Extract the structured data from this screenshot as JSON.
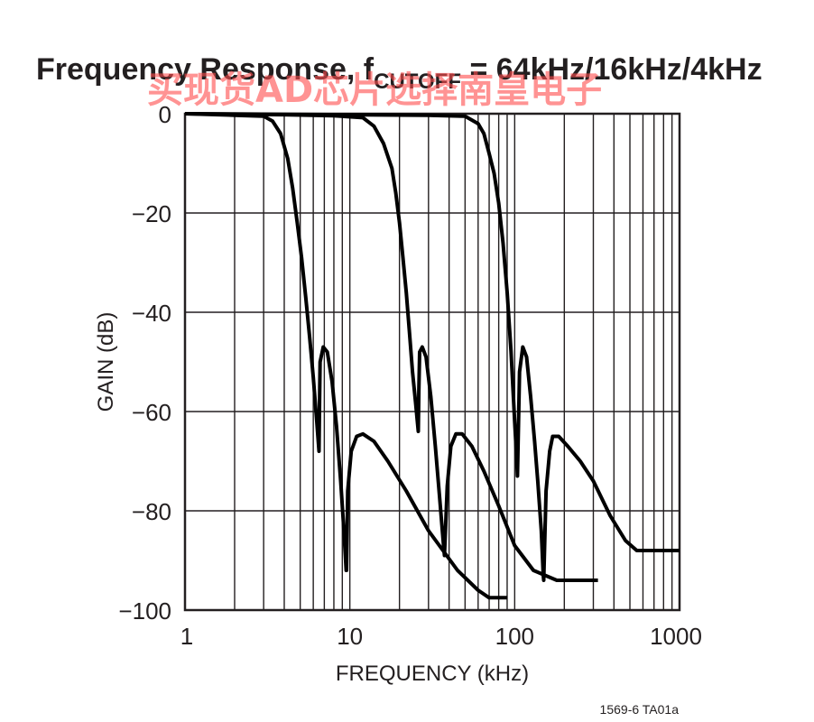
{
  "chart_data": {
    "type": "line",
    "title": "Frequency Response, f",
    "title_subscript": "CUTOFF",
    "title_suffix": " = 64kHz/16kHz/4kHz",
    "xlabel": "FREQUENCY (kHz)",
    "ylabel": "GAIN (dB)",
    "x_scale": "log",
    "xlim": [
      1,
      1000
    ],
    "ylim": [
      -100,
      0
    ],
    "x_ticks": [
      "1",
      "10",
      "100",
      "1000"
    ],
    "y_ticks": [
      "0",
      "−20",
      "−40",
      "−60",
      "−80",
      "−100"
    ],
    "grid": true,
    "series": [
      {
        "x": [
          1,
          2,
          3,
          3.4,
          3.8,
          4.2,
          4.5,
          4.8,
          5.1,
          5.4,
          5.7,
          6.0,
          6.3,
          6.5,
          6.55,
          6.6,
          6.9,
          7.3,
          7.8,
          8.3,
          8.8,
          9.2,
          9.5,
          9.55,
          9.7,
          10.2,
          11,
          12,
          14,
          17,
          22,
          30,
          45,
          60,
          70,
          90
        ],
        "y": [
          0,
          -0.3,
          -0.5,
          -1.5,
          -4,
          -9,
          -15,
          -22,
          -29,
          -37,
          -45,
          -53,
          -62,
          -68,
          -58,
          -50,
          -47,
          -48,
          -54,
          -63,
          -74,
          -84,
          -92,
          -92,
          -76,
          -68,
          -65,
          -64.5,
          -66,
          -70,
          -76,
          -84,
          -92,
          -96,
          -97.5,
          -97.5
        ]
      },
      {
        "x": [
          1,
          4,
          8,
          12,
          14,
          16,
          18,
          19,
          20,
          21,
          22,
          23,
          24,
          25,
          26,
          26.2,
          26.5,
          27.5,
          29,
          31,
          33,
          35,
          37,
          37.5,
          39,
          41,
          44,
          48,
          55,
          65,
          80,
          100,
          130,
          180,
          250,
          320
        ],
        "y": [
          0,
          -0.2,
          -0.4,
          -0.8,
          -2.5,
          -6,
          -11,
          -16,
          -22,
          -29,
          -36,
          -44,
          -52,
          -58,
          -64,
          -56,
          -48,
          -47,
          -49,
          -57,
          -67,
          -77,
          -87,
          -89,
          -75,
          -67,
          -64.5,
          -64.5,
          -67,
          -72,
          -79,
          -87,
          -92,
          -94,
          -94,
          -94
        ]
      },
      {
        "x": [
          1,
          10,
          30,
          50,
          60,
          65,
          70,
          75,
          80,
          85,
          90,
          95,
          100,
          103,
          104,
          107,
          112,
          118,
          125,
          132,
          138,
          145,
          149,
          150,
          155,
          163,
          170,
          185,
          210,
          250,
          300,
          380,
          470,
          550,
          700,
          1000
        ],
        "y": [
          0,
          -0.2,
          -0.3,
          -0.5,
          -2,
          -4,
          -8,
          -12,
          -18,
          -26,
          -36,
          -48,
          -62,
          -70,
          -73,
          -52,
          -47,
          -49,
          -57,
          -66,
          -74,
          -84,
          -93,
          -94,
          -76,
          -68,
          -65,
          -65,
          -67,
          -70,
          -74,
          -81,
          -86,
          -88,
          -88,
          -88
        ]
      }
    ]
  },
  "watermark_text": "买现货AD芯片选择南皇电子",
  "figure_code": "1569-6 TA01a"
}
